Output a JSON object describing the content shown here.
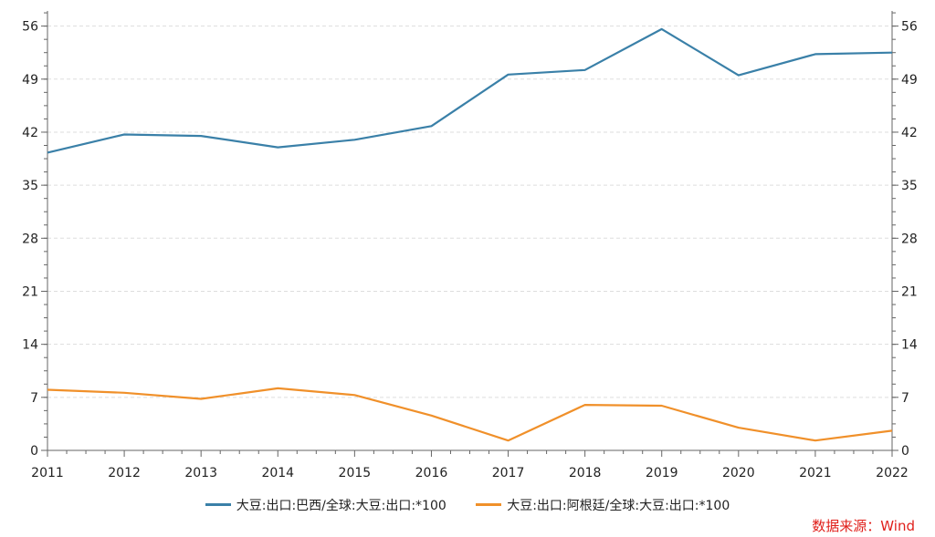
{
  "chart_data": {
    "type": "line",
    "x": [
      "2011",
      "2012",
      "2013",
      "2014",
      "2015",
      "2016",
      "2017",
      "2018",
      "2019",
      "2020",
      "2021",
      "2022"
    ],
    "yticks": [
      0,
      7,
      14,
      21,
      28,
      35,
      42,
      49,
      56
    ],
    "ylim": [
      0,
      58
    ],
    "grid": true,
    "legend_position": "bottom",
    "series": [
      {
        "name": "大豆:出口:巴西/全球:大豆:出口:*100",
        "color": "#3a80a8",
        "values": [
          39.3,
          41.7,
          41.5,
          40.0,
          41.0,
          42.8,
          49.6,
          50.2,
          55.6,
          49.5,
          52.3,
          52.5
        ]
      },
      {
        "name": "大豆:出口:阿根廷/全球:大豆:出口:*100",
        "color": "#f0902a",
        "values": [
          8.0,
          7.6,
          6.8,
          8.2,
          7.3,
          4.6,
          1.3,
          6.0,
          5.9,
          3.0,
          1.3,
          2.6
        ]
      }
    ]
  },
  "source_text": "数据来源：Wind"
}
